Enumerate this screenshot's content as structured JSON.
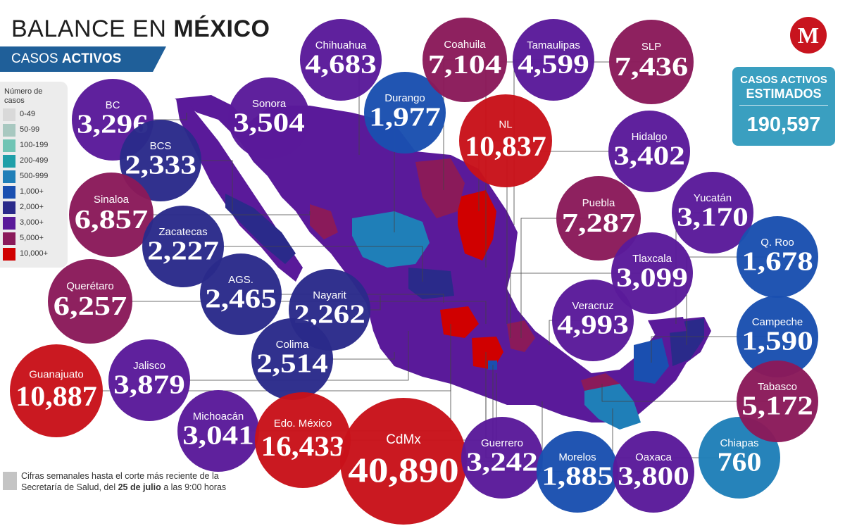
{
  "header": {
    "title_regular": "BALANCE EN ",
    "title_bold": "MÉXICO",
    "subtitle_regular": "CASOS ",
    "subtitle_bold": "ACTIVOS"
  },
  "legend": {
    "title": "Número de casos",
    "items": [
      {
        "label": "0-49",
        "color": "#d9d9d9"
      },
      {
        "label": "50-99",
        "color": "#a8c8c0"
      },
      {
        "label": "100-199",
        "color": "#6fc4b4"
      },
      {
        "label": "200-499",
        "color": "#1f9fa8"
      },
      {
        "label": "500-999",
        "color": "#1f7fb8"
      },
      {
        "label": "1,000+",
        "color": "#1a4fb0"
      },
      {
        "label": "2,000+",
        "color": "#2a2a8a"
      },
      {
        "label": "3,000+",
        "color": "#5a1a9a"
      },
      {
        "label": "5,000+",
        "color": "#8a1a5a"
      },
      {
        "label": "10,000+",
        "color": "#d00000"
      }
    ]
  },
  "estimate": {
    "line1": "CASOS ACTIVOS",
    "line2": "ESTIMADOS",
    "value": "190,597"
  },
  "logo": {
    "letter": "M",
    "color": "#c8141e"
  },
  "footer": {
    "part1": "Cifras semanales hasta el corte más reciente de la Secretaría de Salud, del ",
    "date": "25 de julio",
    "part2": " a las 9:00 horas"
  },
  "chart_data": {
    "type": "bubble-map",
    "categories": [
      "BC",
      "BCS",
      "Sonora",
      "Chihuahua",
      "Durango",
      "Coahuila",
      "Tamaulipas",
      "NL",
      "SLP",
      "Hidalgo",
      "Sinaloa",
      "Zacatecas",
      "AGS.",
      "Nayarit",
      "Querétaro",
      "Colima",
      "Guanajuato",
      "Jalisco",
      "Michoacán",
      "Edo. México",
      "CdMx",
      "Guerrero",
      "Morelos",
      "Oaxaca",
      "Chiapas",
      "Puebla",
      "Tlaxcala",
      "Yucatán",
      "Veracruz",
      "Q. Roo",
      "Campeche",
      "Tabasco"
    ],
    "values": [
      3296,
      2333,
      3504,
      4683,
      1977,
      7104,
      4599,
      10837,
      7436,
      3402,
      6857,
      2227,
      2465,
      2262,
      6257,
      2514,
      10887,
      3879,
      3041,
      16433,
      40890,
      3242,
      1885,
      3800,
      760,
      7287,
      3099,
      3170,
      4993,
      1678,
      1590,
      5172
    ],
    "labels": [
      "3,296",
      "2,333",
      "3,504",
      "4,683",
      "1,977",
      "7,104",
      "4,599",
      "10,837",
      "7,436",
      "3,402",
      "6,857",
      "2,227",
      "2,465",
      "2,262",
      "6,257",
      "2,514",
      "10,887",
      "3,879",
      "3,041",
      "16,433",
      "40,890",
      "3,242",
      "1,885",
      "3,800",
      "760",
      "7,287",
      "3,099",
      "3,170",
      "4,993",
      "1,678",
      "1,590",
      "5,172"
    ]
  }
}
